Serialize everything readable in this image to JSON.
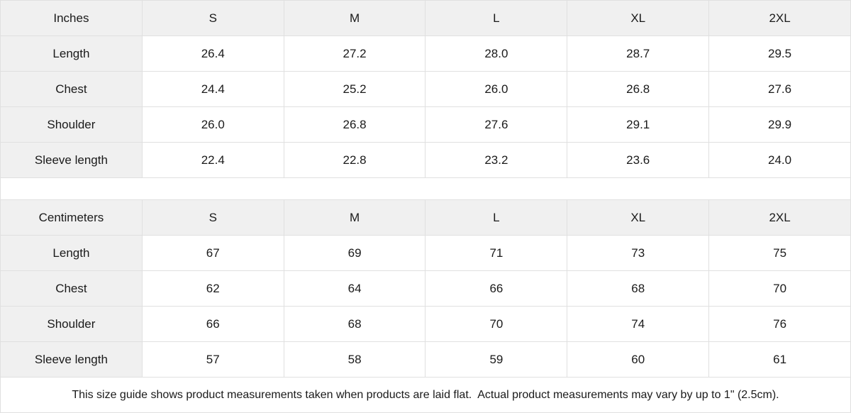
{
  "colors": {
    "header_background": "#f0f0f0",
    "border": "#e0e0e0",
    "text": "#1a1a1a",
    "background": "#ffffff"
  },
  "tables": [
    {
      "unit_label": "Inches",
      "sizes": [
        "S",
        "M",
        "L",
        "XL",
        "2XL"
      ],
      "rows": [
        {
          "label": "Length",
          "values": [
            "26.4",
            "27.2",
            "28.0",
            "28.7",
            "29.5"
          ]
        },
        {
          "label": "Chest",
          "values": [
            "24.4",
            "25.2",
            "26.0",
            "26.8",
            "27.6"
          ]
        },
        {
          "label": "Shoulder",
          "values": [
            "26.0",
            "26.8",
            "27.6",
            "29.1",
            "29.9"
          ]
        },
        {
          "label": "Sleeve length",
          "values": [
            "22.4",
            "22.8",
            "23.2",
            "23.6",
            "24.0"
          ]
        }
      ]
    },
    {
      "unit_label": "Centimeters",
      "sizes": [
        "S",
        "M",
        "L",
        "XL",
        "2XL"
      ],
      "rows": [
        {
          "label": "Length",
          "values": [
            "67",
            "69",
            "71",
            "73",
            "75"
          ]
        },
        {
          "label": "Chest",
          "values": [
            "62",
            "64",
            "66",
            "68",
            "70"
          ]
        },
        {
          "label": "Shoulder",
          "values": [
            "66",
            "68",
            "70",
            "74",
            "76"
          ]
        },
        {
          "label": "Sleeve length",
          "values": [
            "57",
            "58",
            "59",
            "60",
            "61"
          ]
        }
      ]
    }
  ],
  "footer": {
    "note": "This size guide shows product measurements taken when products are laid flat.  Actual product measurements may vary by up to 1\" (2.5cm)."
  }
}
